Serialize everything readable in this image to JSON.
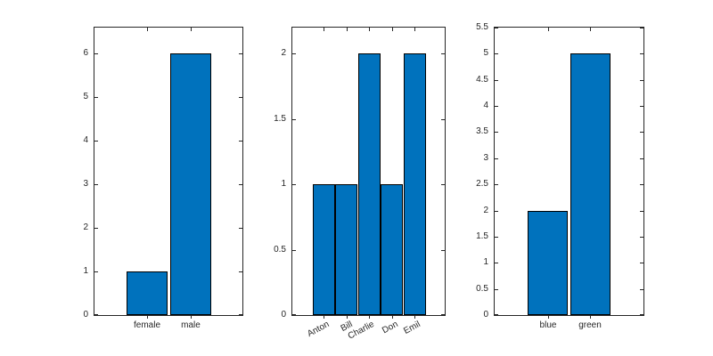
{
  "figure": {
    "background": "#ffffff",
    "bar_fill_color": "#0072BD",
    "bar_edge_color": "#000000",
    "axis_color": "#262626",
    "text_color": "#262626"
  },
  "chart_data": [
    {
      "type": "bar",
      "name": "gender-histogram",
      "title": "",
      "xlabel": "",
      "ylabel": "",
      "categories": [
        "female",
        "male"
      ],
      "values": [
        1,
        6
      ],
      "ylim": [
        0,
        6.6
      ],
      "yticks": [
        0,
        1,
        2,
        3,
        4,
        5,
        6
      ],
      "ytick_labels": [
        "0",
        "1",
        "2",
        "3",
        "4",
        "5",
        "6"
      ],
      "xtick_rotation": 0,
      "grid": false,
      "legend": null
    },
    {
      "type": "bar",
      "name": "names-histogram",
      "title": "",
      "xlabel": "",
      "ylabel": "",
      "categories": [
        "Anton",
        "Bill",
        "Charlie",
        "Don",
        "Emil"
      ],
      "values": [
        1,
        1,
        2,
        1,
        2
      ],
      "ylim": [
        0,
        2.2
      ],
      "yticks": [
        0,
        0.5,
        1,
        1.5,
        2
      ],
      "ytick_labels": [
        "0",
        "0.5",
        "1",
        "1.5",
        "2"
      ],
      "xtick_rotation": -28,
      "grid": false,
      "legend": null
    },
    {
      "type": "bar",
      "name": "colors-histogram",
      "title": "",
      "xlabel": "",
      "ylabel": "",
      "categories": [
        "blue",
        "green"
      ],
      "values": [
        2,
        5
      ],
      "ylim": [
        0,
        5.5
      ],
      "yticks": [
        0,
        0.5,
        1,
        1.5,
        2,
        2.5,
        3,
        3.5,
        4,
        4.5,
        5,
        5.5
      ],
      "ytick_labels": [
        "0",
        "0.5",
        "1",
        "1.5",
        "2",
        "2.5",
        "3",
        "3.5",
        "4",
        "4.5",
        "5",
        "5.5"
      ],
      "xtick_rotation": 0,
      "grid": false,
      "legend": null
    }
  ]
}
